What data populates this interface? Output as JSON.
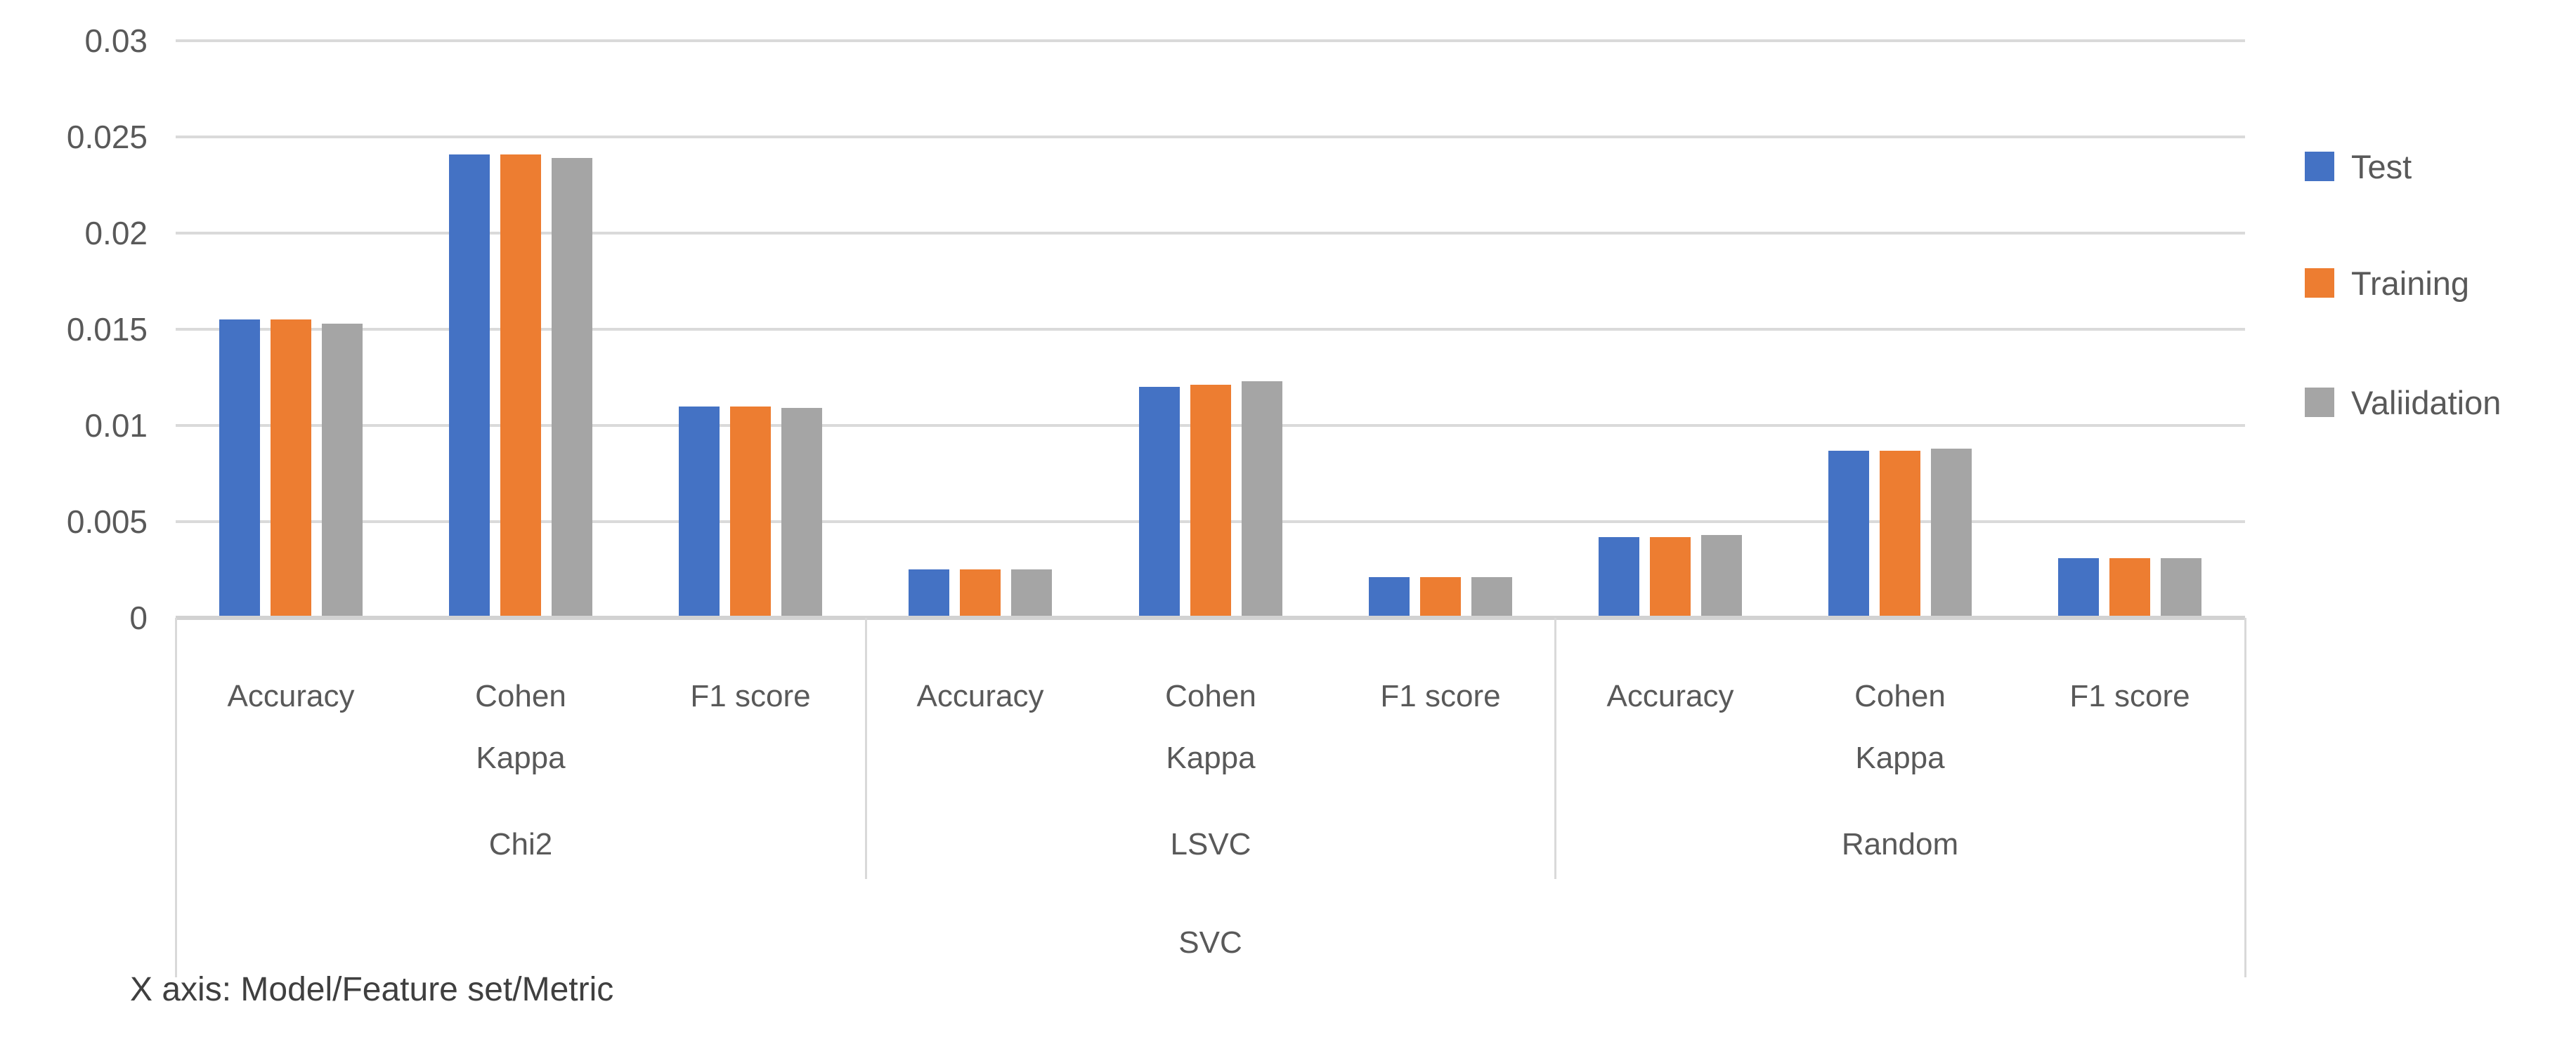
{
  "chart_data": {
    "type": "bar",
    "title": "",
    "super_group": "SVC",
    "groups": [
      {
        "label": "Chi2",
        "categories": [
          "Accuracy",
          "Cohen Kappa",
          "F1 score"
        ]
      },
      {
        "label": "LSVC",
        "categories": [
          "Accuracy",
          "Cohen Kappa",
          "F1 score"
        ]
      },
      {
        "label": "Random",
        "categories": [
          "Accuracy",
          "Cohen Kappa",
          "F1 score"
        ]
      }
    ],
    "series": [
      {
        "name": "Test",
        "color": "#4472C4",
        "values": [
          0.0155,
          0.0241,
          0.011,
          0.0025,
          0.012,
          0.0021,
          0.0042,
          0.0087,
          0.0031
        ]
      },
      {
        "name": "Training",
        "color": "#ED7D31",
        "values": [
          0.0155,
          0.0241,
          0.011,
          0.0025,
          0.0121,
          0.0021,
          0.0042,
          0.0087,
          0.0031
        ]
      },
      {
        "name": "Valiidation",
        "color": "#A5A5A5",
        "values": [
          0.0153,
          0.0239,
          0.0109,
          0.0025,
          0.0123,
          0.0021,
          0.0043,
          0.0088,
          0.0031
        ]
      }
    ],
    "y_axis": {
      "min": 0,
      "max": 0.03,
      "step": 0.005,
      "tick_labels": [
        "0",
        "0.005",
        "0.01",
        "0.015",
        "0.02",
        "0.025",
        "0.03"
      ]
    },
    "grid": true,
    "legend_position": "right",
    "footnote": "X axis: Model/Feature set/Metric",
    "colors": {
      "gridline": "#DADADA",
      "axis_line": "#D2D2D2",
      "label_text": "#595959"
    }
  }
}
